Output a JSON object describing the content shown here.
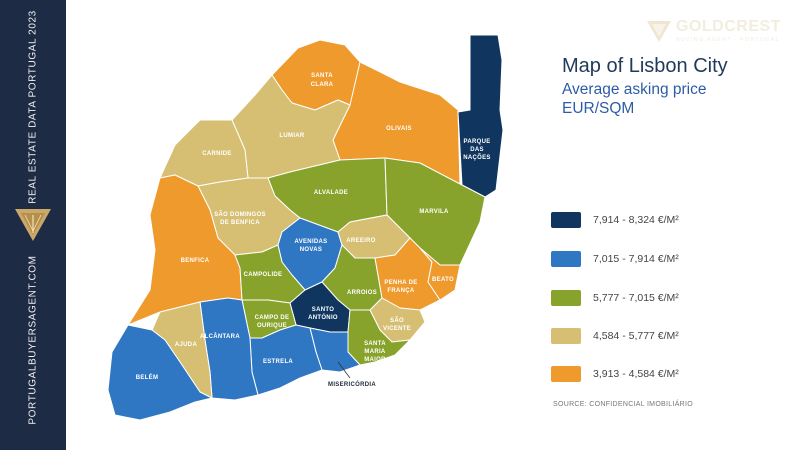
{
  "sidebar": {
    "top_text": "REAL ESTATE DATA PORTUGAL 2023",
    "bottom_text": "PORTUGALBUYERSAGENT.COM"
  },
  "brand": {
    "name": "GOLDCREST",
    "tagline": "BUYING AGENT · PORTUGAL"
  },
  "title": "Map of Lisbon City",
  "subtitle_line1": "Average asking price",
  "subtitle_line2": "EUR/SQM",
  "colors": {
    "tier1": "#10365f",
    "tier2": "#2f77c3",
    "tier3": "#87a32c",
    "tier4": "#d6bf72",
    "tier5": "#ef9a2d"
  },
  "legend": [
    {
      "label": "7,914 - 8,324 €/M²",
      "color": "#10365f"
    },
    {
      "label": "7,015 - 7,914 €/M²",
      "color": "#2f77c3"
    },
    {
      "label": "5,777 - 7,015 €/M²",
      "color": "#87a32c"
    },
    {
      "label": "4,584 - 5,777 €/M²",
      "color": "#d6bf72"
    },
    {
      "label": "3,913 - 4,584 €/M²",
      "color": "#ef9a2d"
    }
  ],
  "source": "SOURCE: CONFIDENCIAL IMOBILIÁRIO",
  "parishes": {
    "santa_clara": [
      "SANTA",
      "CLARA"
    ],
    "olivais": "OLIVAIS",
    "parque_das_nacoes": [
      "PARQUE",
      "DAS",
      "NAÇÕES"
    ],
    "lumiar": "LUMIAR",
    "carnide": "CARNIDE",
    "alvalade": "ALVALADE",
    "marvila": "MARVILA",
    "sao_domingos": [
      "SÃO DOMINGOS",
      "DE BENFICA"
    ],
    "benfica": "BENFICA",
    "avenidas_novas": [
      "AVENIDAS",
      "NOVAS"
    ],
    "areeiro": "AREEIRO",
    "campolide": "CAMPOLIDE",
    "arroios": "ARROIOS",
    "penha_de_franca": [
      "PENHA DE",
      "FRANÇA"
    ],
    "beato": "BEATO",
    "santo_antonio": [
      "SANTO",
      "ANTÓNIO"
    ],
    "campo_de_ourique": [
      "CAMPO DE",
      "OURIQUE"
    ],
    "sao_vicente": [
      "SÃO",
      "VICENTE"
    ],
    "alcantara": "ALCÂNTARA",
    "ajuda": "AJUDA",
    "estrela": "ESTRELA",
    "santa_maria_maior": [
      "SANTA",
      "MARIA",
      "MAIOR"
    ],
    "belem": "BELÉM",
    "misericordia": "MISERICÓRDIA"
  }
}
